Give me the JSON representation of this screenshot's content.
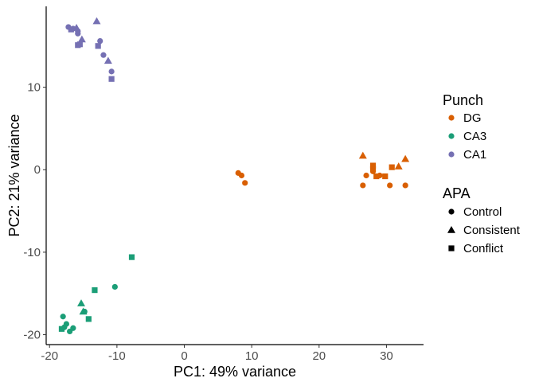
{
  "chart_data": {
    "type": "scatter",
    "xlabel": "PC1: 49% variance",
    "ylabel": "PC2: 21% variance",
    "xlim": [
      -20.5,
      35.5
    ],
    "ylim": [
      -21.2,
      19.8
    ],
    "xticks": [
      -20,
      -10,
      0,
      10,
      20,
      30
    ],
    "xtick_labels": [
      "-20",
      "-10",
      "0",
      "10",
      "20",
      "30"
    ],
    "yticks": [
      -20,
      -10,
      0,
      10
    ],
    "ytick_labels": [
      "-20",
      "-10",
      "0",
      "10"
    ],
    "grid": false,
    "legend_placement": "right",
    "color_legend": {
      "title": "Punch",
      "items": [
        {
          "label": "DG",
          "color": "#D95F02"
        },
        {
          "label": "CA3",
          "color": "#1B9E77"
        },
        {
          "label": "CA1",
          "color": "#7570B3"
        }
      ]
    },
    "shape_legend": {
      "title": "APA",
      "items": [
        {
          "label": "Control",
          "shape": "circle"
        },
        {
          "label": "Consistent",
          "shape": "triangle"
        },
        {
          "label": "Conflict",
          "shape": "square"
        }
      ]
    },
    "series": [
      {
        "punch": "DG",
        "apa": "Control",
        "points": [
          [
            8.0,
            -0.4
          ],
          [
            8.5,
            -0.7
          ],
          [
            9.0,
            -1.6
          ],
          [
            26.5,
            -1.9
          ],
          [
            27.0,
            -0.7
          ],
          [
            28.0,
            -0.2
          ],
          [
            29.0,
            -0.7
          ],
          [
            30.5,
            -1.9
          ],
          [
            32.8,
            -1.9
          ]
        ]
      },
      {
        "punch": "DG",
        "apa": "Consistent",
        "points": [
          [
            26.5,
            1.7
          ],
          [
            31.8,
            0.4
          ],
          [
            32.8,
            1.3
          ]
        ]
      },
      {
        "punch": "DG",
        "apa": "Conflict",
        "points": [
          [
            28.0,
            0.1
          ],
          [
            28.0,
            0.5
          ],
          [
            28.5,
            -0.8
          ],
          [
            29.8,
            -0.8
          ],
          [
            30.8,
            0.3
          ]
        ]
      },
      {
        "punch": "CA3",
        "apa": "Control",
        "points": [
          [
            -18.0,
            -17.8
          ],
          [
            -17.8,
            -19.1
          ],
          [
            -17.5,
            -18.7
          ],
          [
            -17.0,
            -19.6
          ],
          [
            -16.5,
            -19.2
          ],
          [
            -14.8,
            -17.2
          ],
          [
            -10.3,
            -14.2
          ]
        ]
      },
      {
        "punch": "CA3",
        "apa": "Consistent",
        "points": [
          [
            -15.3,
            -16.2
          ],
          [
            -15.0,
            -17.2
          ]
        ]
      },
      {
        "punch": "CA3",
        "apa": "Conflict",
        "points": [
          [
            -18.2,
            -19.3
          ],
          [
            -14.2,
            -18.1
          ],
          [
            -13.3,
            -14.6
          ],
          [
            -7.8,
            -10.6
          ]
        ]
      },
      {
        "punch": "CA1",
        "apa": "Control",
        "points": [
          [
            -17.2,
            17.3
          ],
          [
            -16.5,
            17.1
          ],
          [
            -15.8,
            16.8
          ],
          [
            -15.8,
            16.5
          ],
          [
            -12.5,
            15.6
          ],
          [
            -12.0,
            13.9
          ],
          [
            -10.8,
            11.9
          ]
        ]
      },
      {
        "punch": "CA1",
        "apa": "Consistent",
        "points": [
          [
            -16.0,
            17.2
          ],
          [
            -15.2,
            15.8
          ],
          [
            -13.0,
            18.0
          ],
          [
            -11.3,
            13.2
          ]
        ]
      },
      {
        "punch": "CA1",
        "apa": "Conflict",
        "points": [
          [
            -16.8,
            17.0
          ],
          [
            -15.8,
            15.1
          ],
          [
            -15.5,
            15.2
          ],
          [
            -12.8,
            15.0
          ],
          [
            -10.8,
            11.0
          ]
        ]
      }
    ]
  }
}
